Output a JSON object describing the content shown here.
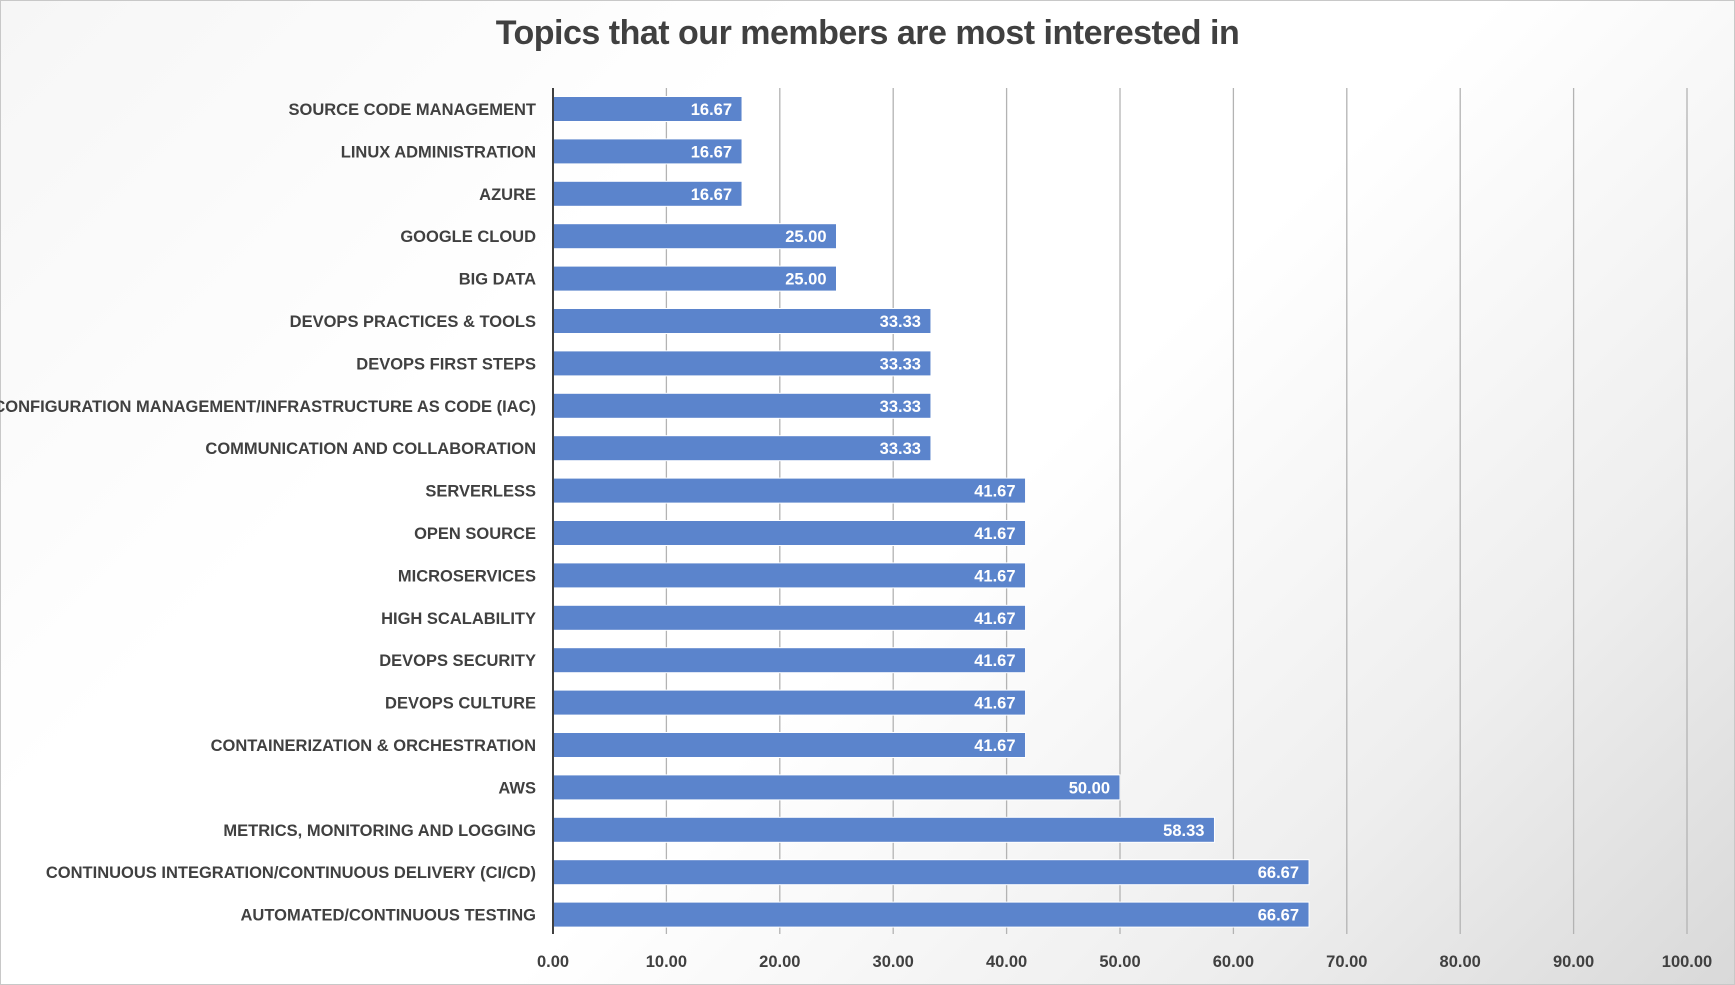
{
  "chart_data": {
    "type": "bar",
    "orientation": "horizontal",
    "title": "Topics that our members are most interested in",
    "xlim": [
      0,
      100
    ],
    "grid": true,
    "bar_color": "#5b84cc",
    "tick_labels": [
      "0.00",
      "10.00",
      "20.00",
      "30.00",
      "40.00",
      "50.00",
      "60.00",
      "70.00",
      "80.00",
      "90.00",
      "100.00"
    ],
    "categories": [
      "SOURCE CODE MANAGEMENT",
      "LINUX ADMINISTRATION",
      "AZURE",
      "GOOGLE CLOUD",
      "BIG DATA",
      "DEVOPS PRACTICES & TOOLS",
      "DEVOPS FIRST STEPS",
      "CONFIGURATION MANAGEMENT/INFRASTRUCTURE AS CODE (IAC)",
      "COMMUNICATION AND COLLABORATION",
      "SERVERLESS",
      "OPEN SOURCE",
      "MICROSERVICES",
      "HIGH SCALABILITY",
      "DEVOPS SECURITY",
      "DEVOPS CULTURE",
      "CONTAINERIZATION & ORCHESTRATION",
      "AWS",
      "METRICS, MONITORING AND LOGGING",
      "CONTINUOUS INTEGRATION/CONTINUOUS DELIVERY (CI/CD)",
      "AUTOMATED/CONTINUOUS TESTING"
    ],
    "values": [
      16.67,
      16.67,
      16.67,
      25.0,
      25.0,
      33.33,
      33.33,
      33.33,
      33.33,
      41.67,
      41.67,
      41.67,
      41.67,
      41.67,
      41.67,
      41.67,
      50.0,
      58.33,
      66.67,
      66.67
    ],
    "data_labels": [
      "16.67",
      "16.67",
      "16.67",
      "25.00",
      "25.00",
      "33.33",
      "33.33",
      "33.33",
      "33.33",
      "41.67",
      "41.67",
      "41.67",
      "41.67",
      "41.67",
      "41.67",
      "41.67",
      "50.00",
      "58.33",
      "66.67",
      "66.67"
    ]
  }
}
